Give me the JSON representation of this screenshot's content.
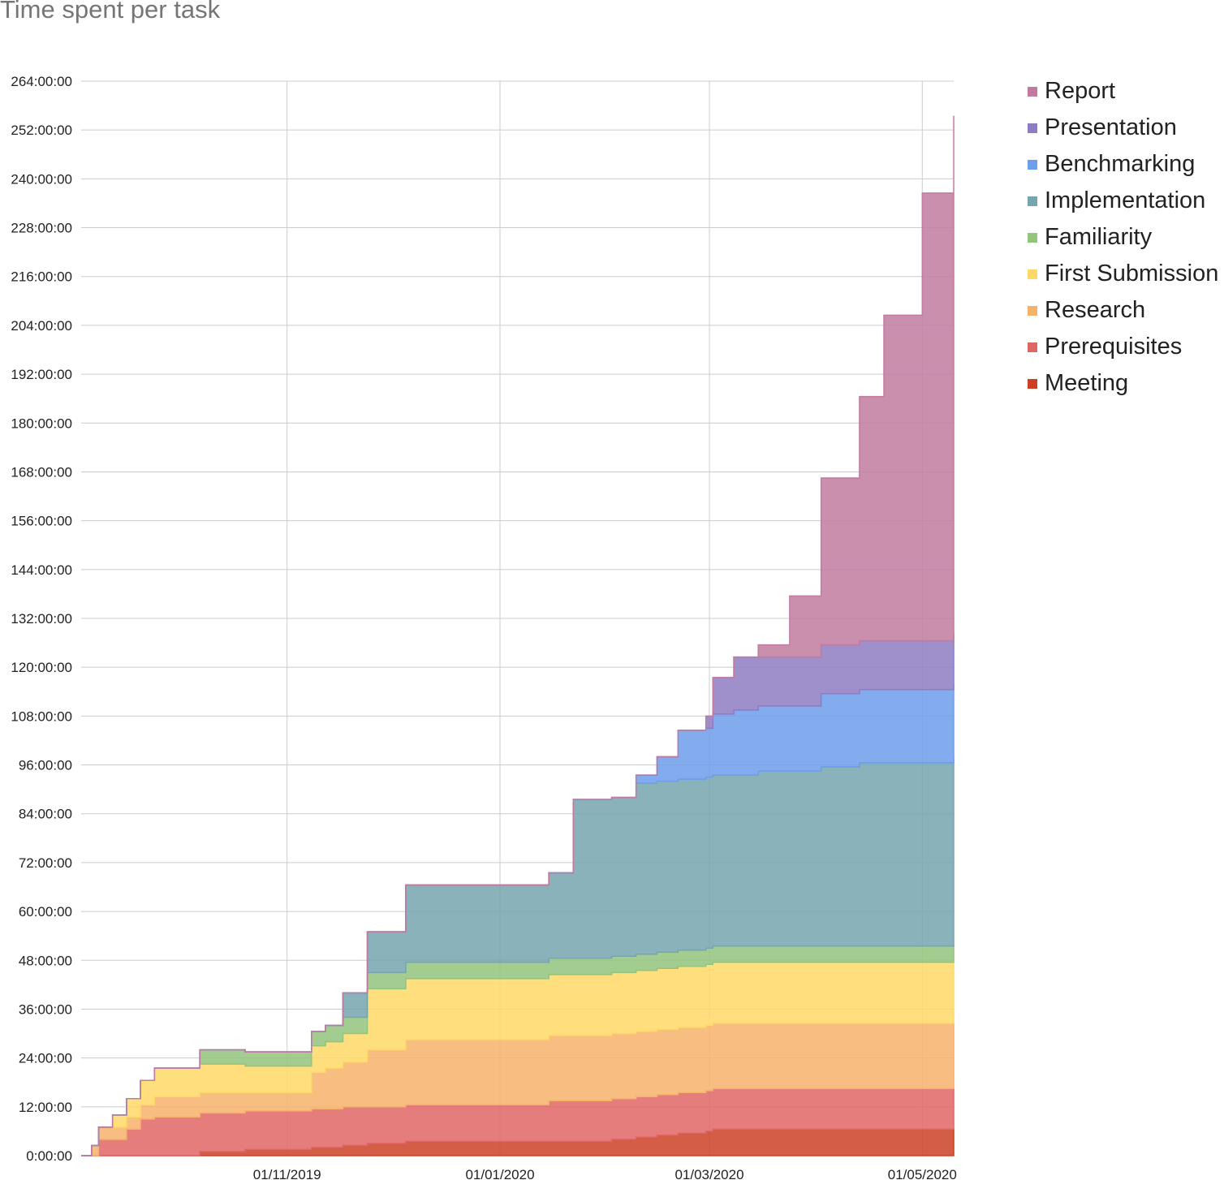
{
  "chart_data": {
    "type": "area",
    "stacked": true,
    "step": true,
    "title": "Time spent per task",
    "xlabel": "",
    "ylabel": "",
    "x_ticks": [
      "01/11/2019",
      "01/01/2020",
      "01/03/2020",
      "01/05/2020"
    ],
    "x_tick_dates": [
      "2019-11-01",
      "2020-01-01",
      "2020-03-01",
      "2020-05-01"
    ],
    "y_ticks": [
      "0:00:00",
      "12:00:00",
      "24:00:00",
      "36:00:00",
      "48:00:00",
      "60:00:00",
      "72:00:00",
      "84:00:00",
      "96:00:00",
      "108:00:00",
      "120:00:00",
      "132:00:00",
      "144:00:00",
      "156:00:00",
      "168:00:00",
      "180:00:00",
      "192:00:00",
      "204:00:00",
      "216:00:00",
      "228:00:00",
      "240:00:00",
      "252:00:00",
      "264:00:00"
    ],
    "y_unit": "hours",
    "ylim": [
      0,
      264
    ],
    "xlim": [
      "2019-09-03",
      "2020-05-10"
    ],
    "grid": true,
    "legend_position": "right",
    "x": [
      "2019-09-03",
      "2019-09-06",
      "2019-09-08",
      "2019-09-12",
      "2019-09-16",
      "2019-09-20",
      "2019-09-24",
      "2019-10-07",
      "2019-10-20",
      "2019-10-31",
      "2019-11-08",
      "2019-11-12",
      "2019-11-17",
      "2019-11-22",
      "2019-11-24",
      "2019-11-30",
      "2019-12-05",
      "2019-12-08",
      "2019-12-31",
      "2020-01-15",
      "2020-01-22",
      "2020-02-02",
      "2020-02-09",
      "2020-02-15",
      "2020-02-21",
      "2020-02-29",
      "2020-03-02",
      "2020-03-08",
      "2020-03-15",
      "2020-03-24",
      "2020-04-02",
      "2020-04-13",
      "2020-04-20",
      "2020-05-01",
      "2020-05-10"
    ],
    "series": [
      {
        "name": "Meeting",
        "color": "#cc4125",
        "values": [
          0,
          0,
          0,
          0,
          0,
          0,
          0,
          1,
          1.5,
          1.5,
          2,
          2,
          2.5,
          2.5,
          3,
          3,
          3.5,
          3.5,
          3.5,
          3.5,
          3.5,
          4,
          4.5,
          5,
          5.5,
          6,
          6.5,
          6.5,
          6.5,
          6.5,
          6.5,
          6.5,
          6.5,
          6.5,
          6.5
        ]
      },
      {
        "name": "Prerequisites",
        "color": "#e06666",
        "values": [
          0,
          0,
          4,
          4,
          6.5,
          9,
          9.5,
          9.5,
          9.5,
          9.5,
          9.5,
          9.5,
          9.5,
          9.5,
          9,
          9,
          9,
          9,
          9,
          10,
          10,
          10,
          10,
          10,
          10,
          10,
          10,
          10,
          10,
          10,
          10,
          10,
          10,
          10,
          10
        ]
      },
      {
        "name": "Research",
        "color": "#f6b26b",
        "values": [
          0,
          2.5,
          3,
          3,
          3,
          3.5,
          5,
          5,
          4.5,
          4.5,
          9,
          10,
          11,
          11,
          14,
          14,
          16,
          16,
          16,
          16,
          16,
          16,
          16,
          16,
          16,
          16,
          16,
          16,
          16,
          16,
          16,
          16,
          16,
          16,
          16
        ]
      },
      {
        "name": "First Submission",
        "color": "#ffd966",
        "values": [
          0,
          0,
          0,
          3,
          4.5,
          6,
          7,
          7,
          6.5,
          6.5,
          6.5,
          6.5,
          7,
          7,
          15,
          15,
          15,
          15,
          15,
          15,
          15,
          15,
          15,
          15,
          15,
          15,
          15,
          15,
          15,
          15,
          15,
          15,
          15,
          15,
          15
        ]
      },
      {
        "name": "Familiarity",
        "color": "#93c47d",
        "values": [
          0,
          0,
          0,
          0,
          0,
          0,
          0,
          3.5,
          3.5,
          3.5,
          3.5,
          4,
          4,
          4,
          4,
          4,
          4,
          4,
          4,
          4,
          4,
          4,
          4,
          4,
          4,
          4,
          4,
          4,
          4,
          4,
          4,
          4,
          4,
          4,
          4
        ]
      },
      {
        "name": "Implementation",
        "color": "#76a5af",
        "values": [
          0,
          0,
          0,
          0,
          0,
          0,
          0,
          0,
          0,
          0,
          0,
          0,
          6,
          6,
          10,
          10,
          19,
          19,
          19,
          21,
          39,
          39,
          42,
          42,
          42,
          42,
          42,
          42,
          43,
          43,
          44,
          45,
          45,
          45,
          46
        ]
      },
      {
        "name": "Benchmarking",
        "color": "#6d9eeb",
        "values": [
          0,
          0,
          0,
          0,
          0,
          0,
          0,
          0,
          0,
          0,
          0,
          0,
          0,
          0,
          0,
          0,
          0,
          0,
          0,
          0,
          0,
          0,
          2,
          6,
          12,
          12,
          15,
          16,
          16,
          16,
          18,
          18,
          18,
          18,
          18.5
        ]
      },
      {
        "name": "Presentation",
        "color": "#8e7cc3",
        "values": [
          0,
          0,
          0,
          0,
          0,
          0,
          0,
          0,
          0,
          0,
          0,
          0,
          0,
          0,
          0,
          0,
          0,
          0,
          0,
          0,
          0,
          0,
          0,
          0,
          0,
          3,
          9,
          13,
          12,
          12,
          12,
          12,
          12,
          12,
          12.5
        ]
      },
      {
        "name": "Report",
        "color": "#c27ba0",
        "values": [
          0,
          0,
          0,
          0,
          0,
          0,
          0,
          0,
          0,
          0,
          0,
          0,
          0,
          0,
          0,
          0,
          0,
          0,
          0,
          0,
          0,
          0,
          0,
          0,
          0,
          0,
          0,
          0,
          3,
          15,
          41,
          60,
          80,
          110,
          127
        ]
      }
    ]
  }
}
